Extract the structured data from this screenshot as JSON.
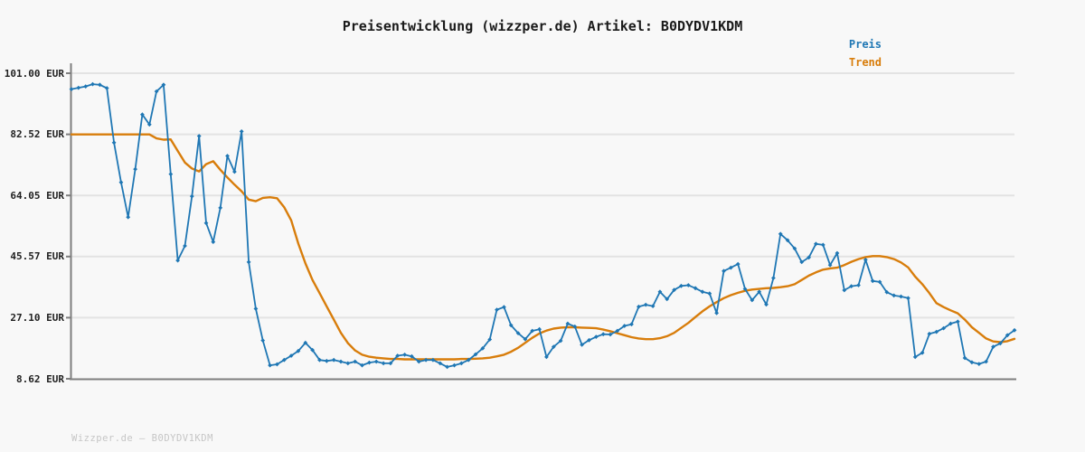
{
  "header": {
    "title": "Preisentwicklung (wizzper.de) Artikel: B0DYDV1KDM"
  },
  "legend": [
    {
      "label": "Preis",
      "color": "#1f77b4"
    },
    {
      "label": "Trend",
      "color": "#d87d0b"
    }
  ],
  "footer": {
    "text": "Wizzper.de – B0DYDV1KDM"
  },
  "chart_data": {
    "type": "line",
    "title": "Preisentwicklung (wizzper.de) Artikel: B0DYDV1KDM",
    "xlabel": "",
    "ylabel": "EUR",
    "xticks": [],
    "grid": true,
    "legend_position": "top-right",
    "yticks": [
      {
        "label": "101.00 EUR",
        "value": 101.0
      },
      {
        "label": "82.52 EUR",
        "value": 82.52
      },
      {
        "label": "64.05 EUR",
        "value": 64.05
      },
      {
        "label": "45.57 EUR",
        "value": 45.57
      },
      {
        "label": "27.10 EUR",
        "value": 27.1
      },
      {
        "label": "8.62 EUR",
        "value": 8.62
      }
    ],
    "ylim": [
      8.62,
      104.0
    ],
    "series": [
      {
        "name": "Preis",
        "color": "#1f77b4",
        "marker": "diamond",
        "values": [
          96.2,
          96.6,
          97.0,
          97.7,
          97.5,
          96.5,
          80.0,
          68.0,
          57.5,
          72.0,
          88.5,
          85.5,
          95.5,
          97.5,
          70.5,
          44.4,
          48.8,
          63.8,
          82.0,
          55.7,
          50.0,
          60.3,
          76.0,
          71.2,
          83.4,
          43.9,
          29.8,
          20.2,
          12.7,
          13.0,
          14.3,
          15.6,
          17.0,
          19.5,
          17.3,
          14.3,
          14.0,
          14.3,
          13.8,
          13.3,
          13.8,
          12.7,
          13.5,
          13.8,
          13.3,
          13.3,
          15.6,
          15.9,
          15.4,
          13.8,
          14.3,
          14.3,
          13.3,
          12.2,
          12.7,
          13.3,
          14.3,
          16.0,
          17.8,
          20.5,
          29.5,
          30.3,
          24.8,
          22.4,
          20.6,
          23.1,
          23.6,
          15.2,
          18.3,
          20.1,
          25.3,
          24.4,
          18.9,
          20.3,
          21.3,
          22.1,
          22.0,
          23.1,
          24.6,
          25.1,
          30.4,
          31.0,
          30.6,
          34.9,
          32.7,
          35.5,
          36.7,
          36.9,
          36.0,
          34.9,
          34.4,
          28.5,
          41.2,
          42.2,
          43.3,
          35.8,
          32.4,
          34.9,
          31.1,
          39.1,
          52.4,
          50.5,
          48.0,
          43.9,
          45.3,
          49.4,
          49.1,
          43.0,
          46.6,
          35.4,
          36.6,
          36.9,
          44.6,
          38.2,
          37.9,
          34.8,
          33.8,
          33.5,
          33.0,
          15.2,
          16.5,
          22.2,
          22.8,
          23.9,
          25.3,
          25.9,
          14.9,
          13.6,
          13.1,
          13.8,
          18.3,
          19.3,
          21.8,
          23.3
        ]
      },
      {
        "name": "Trend",
        "color": "#d87d0b",
        "marker": "none",
        "values": [
          82.5,
          82.5,
          82.5,
          82.5,
          82.5,
          82.5,
          82.5,
          82.5,
          82.5,
          82.5,
          82.5,
          82.5,
          81.3,
          80.9,
          81.0,
          77.5,
          74.0,
          72.2,
          71.3,
          73.5,
          74.4,
          71.8,
          69.5,
          67.3,
          65.3,
          62.8,
          62.3,
          63.3,
          63.5,
          63.2,
          60.5,
          56.5,
          49.5,
          43.5,
          38.5,
          34.5,
          30.5,
          26.5,
          22.5,
          19.4,
          17.2,
          15.9,
          15.3,
          15.0,
          14.8,
          14.6,
          14.6,
          14.5,
          14.5,
          14.5,
          14.5,
          14.5,
          14.5,
          14.5,
          14.5,
          14.6,
          14.6,
          14.7,
          14.8,
          15.0,
          15.4,
          15.9,
          16.8,
          18.0,
          19.5,
          21.0,
          22.3,
          23.2,
          23.8,
          24.1,
          24.2,
          24.2,
          24.1,
          24.0,
          23.9,
          23.5,
          23.0,
          22.4,
          21.8,
          21.2,
          20.8,
          20.6,
          20.6,
          20.9,
          21.5,
          22.5,
          24.0,
          25.5,
          27.3,
          29.0,
          30.5,
          31.8,
          33.0,
          33.9,
          34.6,
          35.2,
          35.6,
          35.8,
          36.0,
          36.1,
          36.3,
          36.6,
          37.2,
          38.5,
          39.8,
          40.8,
          41.6,
          42.0,
          42.2,
          43.0,
          44.0,
          44.8,
          45.4,
          45.7,
          45.7,
          45.4,
          44.8,
          43.8,
          42.3,
          39.5,
          37.2,
          34.5,
          31.5,
          30.3,
          29.3,
          28.4,
          26.5,
          24.2,
          22.5,
          20.8,
          19.9,
          19.7,
          20.0,
          20.7
        ]
      }
    ]
  }
}
